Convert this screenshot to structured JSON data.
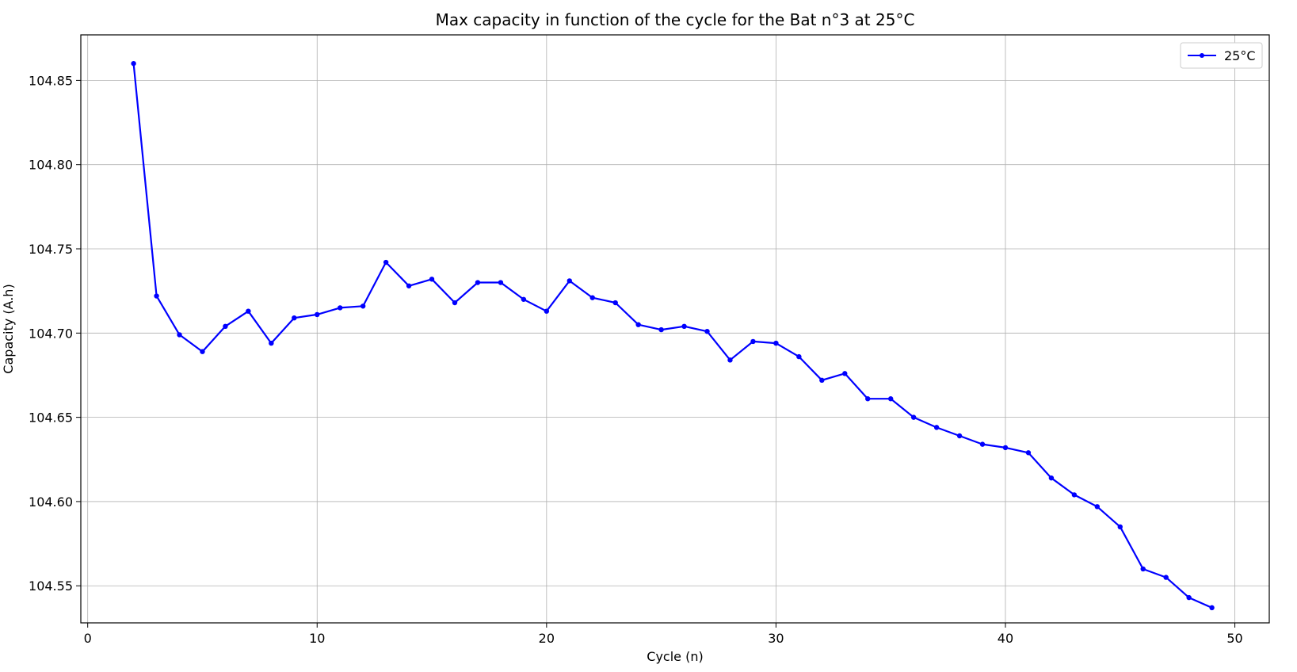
{
  "chart_data": {
    "type": "line",
    "title": "Max capacity in function of the cycle for the Bat n°3 at 25°C",
    "xlabel": "Cycle (n)",
    "ylabel": "Capacity (A.h)",
    "xlim": [
      -0.3,
      51.5
    ],
    "ylim": [
      104.528,
      104.877
    ],
    "xticks": [
      0,
      10,
      20,
      30,
      40,
      50
    ],
    "yticks": [
      104.55,
      104.6,
      104.65,
      104.7,
      104.75,
      104.8,
      104.85
    ],
    "ytick_labels": [
      "104.55",
      "104.60",
      "104.65",
      "104.70",
      "104.75",
      "104.80",
      "104.85"
    ],
    "grid": true,
    "legend_position": "top-right",
    "series": [
      {
        "name": "25°C",
        "color": "#0000ff",
        "marker": "circle",
        "x": [
          2,
          3,
          4,
          5,
          6,
          7,
          8,
          9,
          10,
          11,
          12,
          13,
          14,
          15,
          16,
          17,
          18,
          19,
          20,
          21,
          22,
          23,
          24,
          25,
          26,
          27,
          28,
          29,
          30,
          31,
          32,
          33,
          34,
          35,
          36,
          37,
          38,
          39,
          40,
          41,
          42,
          43,
          44,
          45,
          46,
          47,
          48,
          49
        ],
        "y": [
          104.86,
          104.722,
          104.699,
          104.689,
          104.704,
          104.713,
          104.694,
          104.709,
          104.711,
          104.715,
          104.716,
          104.742,
          104.728,
          104.732,
          104.718,
          104.73,
          104.73,
          104.72,
          104.713,
          104.731,
          104.721,
          104.718,
          104.705,
          104.702,
          104.704,
          104.701,
          104.684,
          104.695,
          104.694,
          104.686,
          104.672,
          104.676,
          104.661,
          104.661,
          104.65,
          104.644,
          104.639,
          104.634,
          104.632,
          104.629,
          104.614,
          104.604,
          104.597,
          104.585,
          104.56,
          104.555,
          104.543,
          104.537
        ]
      }
    ]
  }
}
